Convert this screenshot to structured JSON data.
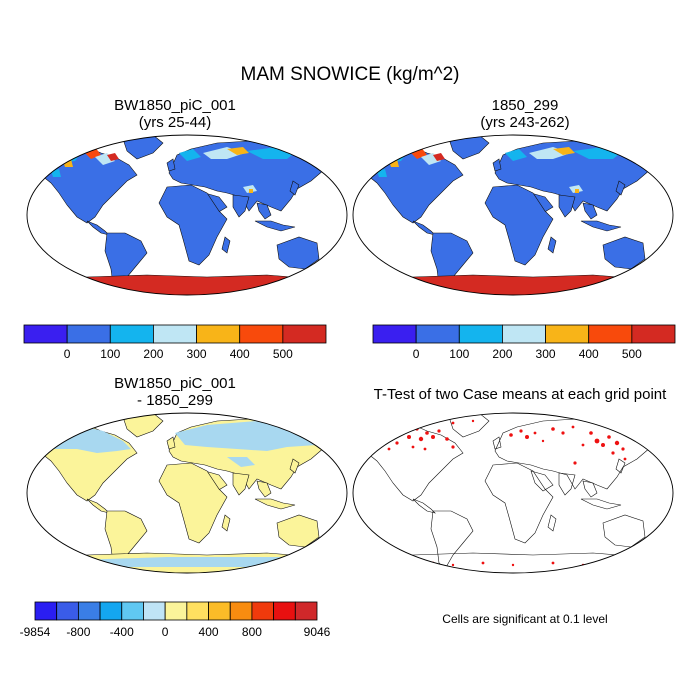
{
  "title": "MAM SNOWICE (kg/m^2)",
  "panels": [
    {
      "id": "case1",
      "title_line1": "BW1850_piC_001",
      "title_line2": "(yrs 25-44)"
    },
    {
      "id": "case2",
      "title_line1": "1850_299",
      "title_line2": "(yrs 243-262)"
    },
    {
      "id": "diff",
      "title_line1": "BW1850_piC_001",
      "title_line2": "- 1850_299"
    },
    {
      "id": "ttest",
      "title_line1": "T-Test of two Case means at each grid point",
      "title_line2": ""
    }
  ],
  "colorbar_main": {
    "colors": [
      "#3a1ff0",
      "#3a6fe6",
      "#14b4ee",
      "#bfe6f4",
      "#f8b418",
      "#f84a0c",
      "#d42a22"
    ],
    "labels": [
      "0",
      "100",
      "200",
      "300",
      "400",
      "500"
    ]
  },
  "colorbar_diff": {
    "colors": [
      "#2a1ef2",
      "#3a5ce8",
      "#3a7ee6",
      "#14a6f0",
      "#60c8f2",
      "#bfe4f6",
      "#fbf49a",
      "#ffe060",
      "#fbbc28",
      "#f88c10",
      "#f03a0c",
      "#e81010",
      "#d0282a"
    ],
    "labels": [
      "-9854",
      "-800",
      "-400",
      "0",
      "400",
      "800",
      "9046"
    ]
  },
  "note": "Cells are significant at 0.1 level",
  "colors": {
    "ocean": "#ffffff",
    "land_main": "#3a6fe6",
    "antarctica_main": "#d42a22",
    "land_diff": "#fbf49a",
    "snow_diff": "#a8d8f0",
    "significant": "#ee1111"
  }
}
